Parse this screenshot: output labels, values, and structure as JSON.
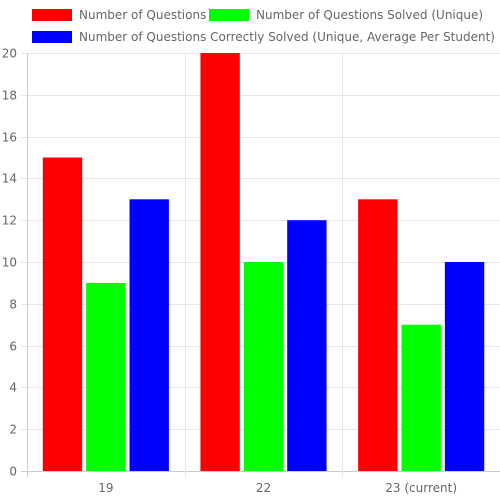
{
  "chart_data": {
    "type": "bar",
    "categories": [
      "19",
      "22",
      "23 (current)"
    ],
    "series": [
      {
        "name": "Number of Questions",
        "color": "#ff0000",
        "values": [
          15,
          20,
          13
        ]
      },
      {
        "name": "Number of Questions Solved (Unique)",
        "color": "#00ff00",
        "values": [
          9,
          10,
          7
        ]
      },
      {
        "name": "Number of Questions Correctly Solved (Unique, Average Per Student)",
        "color": "#0000ff",
        "values": [
          13,
          12,
          10
        ]
      }
    ],
    "y_ticks": [
      "0",
      "2",
      "4",
      "6",
      "8",
      "10",
      "12",
      "14",
      "16",
      "18",
      "20"
    ],
    "ylim": [
      0,
      20
    ],
    "grid": true,
    "legend_position": "top"
  }
}
